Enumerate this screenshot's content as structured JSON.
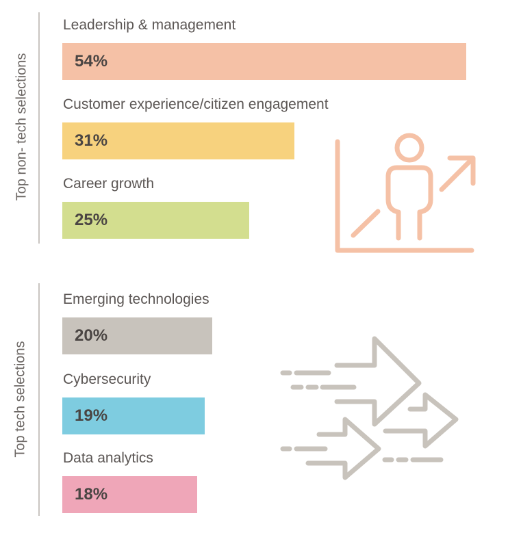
{
  "chart_data": {
    "type": "bar",
    "orientation": "horizontal",
    "groups": [
      {
        "label": "Top non- tech selections",
        "bars": [
          {
            "category": "Leadership & management",
            "value": 54,
            "label": "54%",
            "color": "#F5C1A6"
          },
          {
            "category": "Customer experience/citizen engagement",
            "value": 31,
            "label": "31%",
            "color": "#F7D27E"
          },
          {
            "category": "Career growth",
            "value": 25,
            "label": "25%",
            "color": "#D3DE8F"
          }
        ]
      },
      {
        "label": "Top tech selections",
        "bars": [
          {
            "category": "Emerging technologies",
            "value": 20,
            "label": "20%",
            "color": "#C8C3BC"
          },
          {
            "category": "Cybersecurity",
            "value": 19,
            "label": "19%",
            "color": "#7ECCE0"
          },
          {
            "category": "Data analytics",
            "value": 18,
            "label": "18%",
            "color": "#EFA6B8"
          }
        ]
      }
    ],
    "unit": "%",
    "grid": false
  },
  "icons": {
    "nontech": "person-growth-chart-icon",
    "tech": "forward-arrows-icon",
    "nontech_color": "#F5C1A6",
    "tech_color": "#C8C3BC"
  }
}
